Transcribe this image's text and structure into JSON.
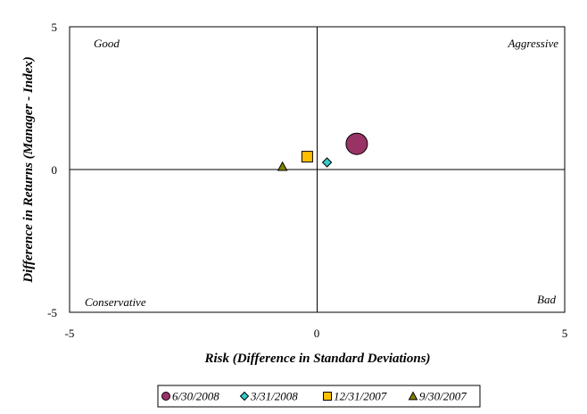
{
  "chart_data": {
    "type": "scatter",
    "xlabel": "Risk (Difference in Standard Deviations)",
    "ylabel": "Difference in Returns (Manager - Index)",
    "xlim": [
      -5,
      5
    ],
    "ylim": [
      -5,
      5
    ],
    "x_ticks": [
      "-5",
      "0",
      "5"
    ],
    "y_ticks": [
      "5",
      "0",
      "-5"
    ],
    "grid": false,
    "legend_position": "bottom",
    "quadrant_labels": {
      "top_left": "Good",
      "top_right": "Aggressive",
      "bottom_left": "Conservative",
      "bottom_right": "Bad"
    },
    "series": [
      {
        "name": "6/30/2008",
        "marker": "circle",
        "color": "#993366",
        "x": 0.8,
        "y": 0.9
      },
      {
        "name": "3/31/2008",
        "marker": "diamond",
        "color": "#33CCCC",
        "x": 0.2,
        "y": 0.25
      },
      {
        "name": "12/31/2007",
        "marker": "square",
        "color": "#FFC000",
        "x": -0.2,
        "y": 0.45
      },
      {
        "name": "9/30/2007",
        "marker": "triangle",
        "color": "#808000",
        "x": -0.7,
        "y": 0.1
      }
    ]
  }
}
